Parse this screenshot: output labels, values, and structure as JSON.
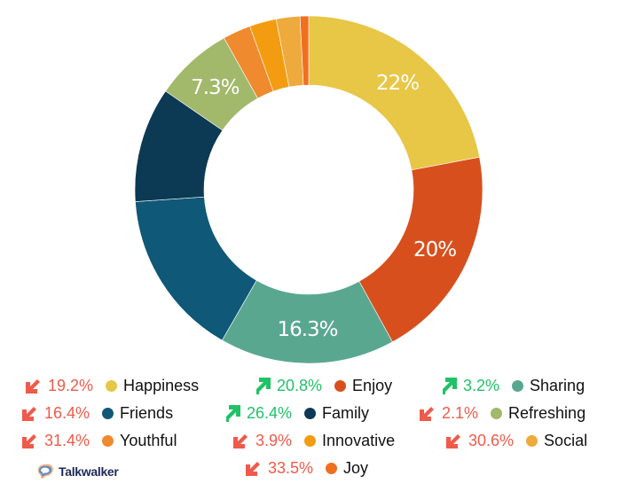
{
  "chart_data": {
    "type": "pie",
    "subtype": "donut",
    "title": "",
    "start_angle": 0,
    "direction": "clockwise",
    "slices": [
      {
        "label": "Happiness",
        "value": 22.0,
        "color": "#e8c646",
        "data_label": "22%"
      },
      {
        "label": "Enjoy",
        "value": 20.0,
        "color": "#d84f1e",
        "data_label": "20%"
      },
      {
        "label": "Sharing",
        "value": 16.3,
        "color": "#5aa790",
        "data_label": "16.3%"
      },
      {
        "label": "Friends",
        "value": 15.6,
        "color": "#0f5877",
        "data_label": ""
      },
      {
        "label": "Family",
        "value": 10.7,
        "color": "#0c3954",
        "data_label": ""
      },
      {
        "label": "Refreshing",
        "value": 7.3,
        "color": "#a2b86b",
        "data_label": "7.3%"
      },
      {
        "label": "Youthful",
        "value": 2.6,
        "color": "#ef8a2e",
        "data_label": ""
      },
      {
        "label": "Innovative",
        "value": 2.5,
        "color": "#f39c12",
        "data_label": ""
      },
      {
        "label": "Social",
        "value": 2.2,
        "color": "#eeaa3c",
        "data_label": ""
      },
      {
        "label": "Joy",
        "value": 0.8,
        "color": "#f07020",
        "data_label": ""
      }
    ],
    "legend_position": "bottom"
  },
  "legend": [
    {
      "label": "Happiness",
      "change": "19.2%",
      "direction": "down",
      "color": "#e8c646"
    },
    {
      "label": "Enjoy",
      "change": "20.8%",
      "direction": "up",
      "color": "#d84f1e"
    },
    {
      "label": "Sharing",
      "change": "3.2%",
      "direction": "up",
      "color": "#5aa790"
    },
    {
      "label": "Friends",
      "change": "16.4%",
      "direction": "down",
      "color": "#0f5877"
    },
    {
      "label": "Family",
      "change": "26.4%",
      "direction": "up",
      "color": "#0c3954"
    },
    {
      "label": "Refreshing",
      "change": "2.1%",
      "direction": "down",
      "color": "#a2b86b"
    },
    {
      "label": "Youthful",
      "change": "31.4%",
      "direction": "down",
      "color": "#ef8a2e"
    },
    {
      "label": "Innovative",
      "change": "3.9%",
      "direction": "down",
      "color": "#f39c12"
    },
    {
      "label": "Social",
      "change": "30.6%",
      "direction": "down",
      "color": "#eeaa3c"
    },
    {
      "label": "Joy",
      "change": "33.5%",
      "direction": "down",
      "color": "#f07020"
    }
  ],
  "brand": {
    "name": "Talkwalker"
  },
  "colors": {
    "down": "#ef5a4a",
    "up": "#20c267"
  }
}
